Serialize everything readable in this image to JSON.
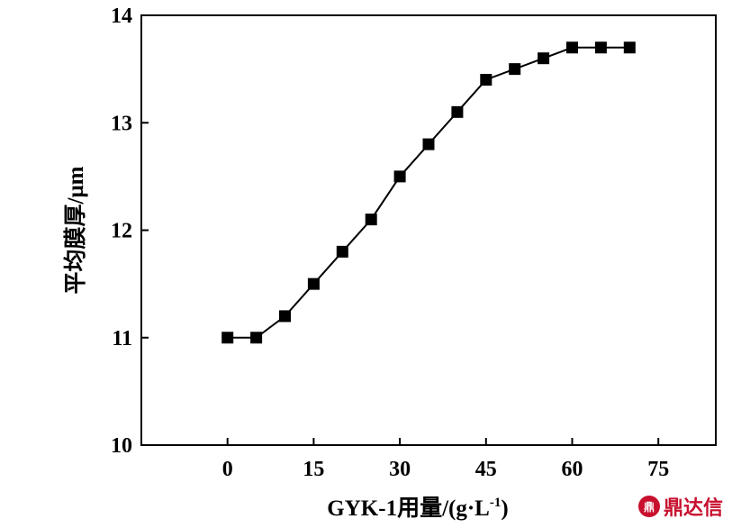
{
  "chart_data": {
    "type": "line",
    "xlabel_main": "GYK-1用量/(g·L",
    "xlabel_sup": "-1",
    "xlabel_end": ")",
    "ylabel": "平均膜厚/μm",
    "xlim": [
      -15,
      85
    ],
    "ylim": [
      10,
      14
    ],
    "xticks": [
      0,
      15,
      30,
      45,
      60,
      75
    ],
    "yticks": [
      10,
      11,
      12,
      13,
      14
    ],
    "marker": "square",
    "line_color": "#000000",
    "series": [
      {
        "x": [
          0,
          5,
          10,
          15,
          20,
          25,
          30,
          35,
          40,
          45,
          50,
          55,
          60,
          65,
          70
        ],
        "values": [
          11.0,
          11.0,
          11.2,
          11.5,
          11.8,
          12.1,
          12.5,
          12.8,
          13.1,
          13.4,
          13.5,
          13.6,
          13.7,
          13.7,
          13.7
        ]
      }
    ]
  },
  "watermark": {
    "logo": "鼎",
    "text": "鼎达信"
  }
}
